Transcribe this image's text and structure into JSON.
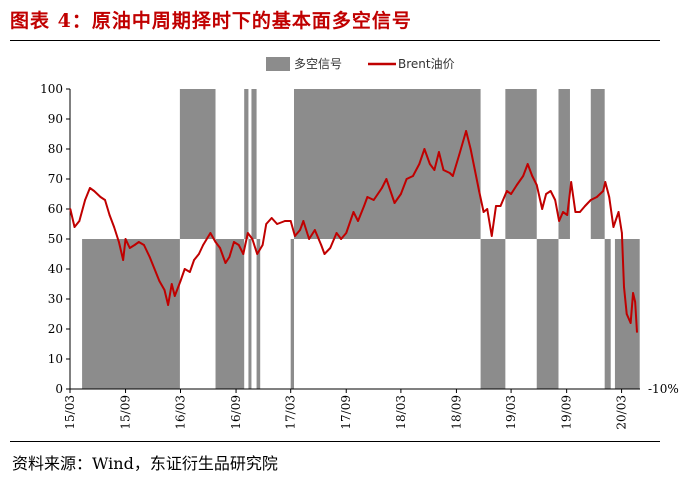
{
  "header": {
    "title": "图表 4：原油中周期择时下的基本面多空信号"
  },
  "footer": {
    "source": "资料来源：Wind，东证衍生品研究院"
  },
  "colors": {
    "signal": "#8c8c8c",
    "brent": "#c00000",
    "title": "#c00000",
    "axis": "#000000"
  },
  "chart_data": {
    "type": "area",
    "title": "",
    "xlabel": "",
    "ylabel": "",
    "ylim": [
      0,
      100
    ],
    "yticks": [
      "0",
      "10",
      "20",
      "30",
      "40",
      "50",
      "60",
      "70",
      "80",
      "90",
      "100"
    ],
    "xlim": [
      "2015-03-01",
      "2020-05-01"
    ],
    "xticks": [
      {
        "label": "15/03",
        "date": "2015-03-01"
      },
      {
        "label": "15/09",
        "date": "2015-09-01"
      },
      {
        "label": "16/03",
        "date": "2016-03-01"
      },
      {
        "label": "16/09",
        "date": "2016-09-01"
      },
      {
        "label": "17/03",
        "date": "2017-03-01"
      },
      {
        "label": "17/09",
        "date": "2017-09-01"
      },
      {
        "label": "18/03",
        "date": "2018-03-01"
      },
      {
        "label": "18/09",
        "date": "2018-09-01"
      },
      {
        "label": "19/03",
        "date": "2019-03-01"
      },
      {
        "label": "19/09",
        "date": "2019-09-01"
      },
      {
        "label": "20/03",
        "date": "2020-03-01"
      }
    ],
    "right_note": "-10%",
    "legend": {
      "position": "top",
      "items": [
        "多空信号",
        "Brent油价"
      ]
    },
    "signal": {
      "name": "多空信号",
      "baseline": 50,
      "periods": [
        {
          "start": "2015-03-01",
          "end": "2015-04-10",
          "value": 50
        },
        {
          "start": "2015-04-10",
          "end": "2016-02-28",
          "value": 0
        },
        {
          "start": "2016-02-28",
          "end": "2016-06-25",
          "value": 100
        },
        {
          "start": "2016-06-25",
          "end": "2016-09-28",
          "value": 0
        },
        {
          "start": "2016-09-28",
          "end": "2016-10-12",
          "value": 100
        },
        {
          "start": "2016-10-12",
          "end": "2016-10-22",
          "value": 0
        },
        {
          "start": "2016-10-22",
          "end": "2016-11-08",
          "value": 100
        },
        {
          "start": "2016-11-08",
          "end": "2016-11-20",
          "value": 0
        },
        {
          "start": "2016-11-20",
          "end": "2017-03-01",
          "value": 50
        },
        {
          "start": "2017-03-01",
          "end": "2017-03-12",
          "value": 0
        },
        {
          "start": "2017-03-12",
          "end": "2018-11-20",
          "value": 100
        },
        {
          "start": "2018-11-20",
          "end": "2019-02-10",
          "value": 0
        },
        {
          "start": "2019-02-10",
          "end": "2019-05-25",
          "value": 100
        },
        {
          "start": "2019-05-25",
          "end": "2019-08-05",
          "value": 0
        },
        {
          "start": "2019-08-05",
          "end": "2019-09-12",
          "value": 100
        },
        {
          "start": "2019-09-12",
          "end": "2019-11-20",
          "value": 50
        },
        {
          "start": "2019-11-20",
          "end": "2020-01-05",
          "value": 100
        },
        {
          "start": "2020-01-05",
          "end": "2020-01-25",
          "value": 0
        },
        {
          "start": "2020-01-25",
          "end": "2020-02-08",
          "value": 50
        },
        {
          "start": "2020-02-08",
          "end": "2020-04-30",
          "value": 0
        }
      ]
    },
    "series": [
      {
        "name": "Brent油价",
        "points": [
          [
            "2015-03-02",
            60
          ],
          [
            "2015-03-16",
            54
          ],
          [
            "2015-04-01",
            56
          ],
          [
            "2015-04-20",
            63
          ],
          [
            "2015-05-06",
            67
          ],
          [
            "2015-05-20",
            66
          ],
          [
            "2015-06-10",
            64
          ],
          [
            "2015-06-25",
            63
          ],
          [
            "2015-07-10",
            58
          ],
          [
            "2015-07-25",
            54
          ],
          [
            "2015-08-10",
            49
          ],
          [
            "2015-08-24",
            43
          ],
          [
            "2015-09-01",
            50
          ],
          [
            "2015-09-15",
            47
          ],
          [
            "2015-10-01",
            48
          ],
          [
            "2015-10-15",
            49
          ],
          [
            "2015-11-01",
            48
          ],
          [
            "2015-11-20",
            44
          ],
          [
            "2015-12-10",
            39
          ],
          [
            "2015-12-22",
            36
          ],
          [
            "2016-01-08",
            33
          ],
          [
            "2016-01-20",
            28
          ],
          [
            "2016-02-01",
            35
          ],
          [
            "2016-02-11",
            31
          ],
          [
            "2016-03-01",
            36
          ],
          [
            "2016-03-15",
            40
          ],
          [
            "2016-04-01",
            39
          ],
          [
            "2016-04-15",
            43
          ],
          [
            "2016-05-01",
            45
          ],
          [
            "2016-05-15",
            48
          ],
          [
            "2016-06-08",
            52
          ],
          [
            "2016-06-25",
            49
          ],
          [
            "2016-07-10",
            47
          ],
          [
            "2016-07-28",
            42
          ],
          [
            "2016-08-10",
            44
          ],
          [
            "2016-08-25",
            49
          ],
          [
            "2016-09-10",
            48
          ],
          [
            "2016-09-25",
            45
          ],
          [
            "2016-10-10",
            52
          ],
          [
            "2016-10-25",
            50
          ],
          [
            "2016-11-10",
            45
          ],
          [
            "2016-11-28",
            48
          ],
          [
            "2016-12-10",
            55
          ],
          [
            "2016-12-28",
            57
          ],
          [
            "2017-01-15",
            55
          ],
          [
            "2017-02-10",
            56
          ],
          [
            "2017-03-01",
            56
          ],
          [
            "2017-03-15",
            51
          ],
          [
            "2017-04-01",
            53
          ],
          [
            "2017-04-12",
            56
          ],
          [
            "2017-05-01",
            50
          ],
          [
            "2017-05-20",
            53
          ],
          [
            "2017-06-10",
            48
          ],
          [
            "2017-06-21",
            45
          ],
          [
            "2017-07-10",
            47
          ],
          [
            "2017-07-31",
            52
          ],
          [
            "2017-08-15",
            50
          ],
          [
            "2017-09-01",
            52
          ],
          [
            "2017-09-25",
            59
          ],
          [
            "2017-10-10",
            56
          ],
          [
            "2017-10-30",
            61
          ],
          [
            "2017-11-10",
            64
          ],
          [
            "2017-12-01",
            63
          ],
          [
            "2017-12-28",
            67
          ],
          [
            "2018-01-12",
            70
          ],
          [
            "2018-02-08",
            62
          ],
          [
            "2018-03-01",
            65
          ],
          [
            "2018-03-20",
            70
          ],
          [
            "2018-04-10",
            71
          ],
          [
            "2018-05-01",
            75
          ],
          [
            "2018-05-18",
            80
          ],
          [
            "2018-06-05",
            75
          ],
          [
            "2018-06-20",
            73
          ],
          [
            "2018-07-05",
            79
          ],
          [
            "2018-07-20",
            73
          ],
          [
            "2018-08-10",
            72
          ],
          [
            "2018-08-20",
            71
          ],
          [
            "2018-09-10",
            78
          ],
          [
            "2018-10-03",
            86
          ],
          [
            "2018-10-18",
            80
          ],
          [
            "2018-11-01",
            73
          ],
          [
            "2018-11-15",
            66
          ],
          [
            "2018-11-30",
            59
          ],
          [
            "2018-12-12",
            60
          ],
          [
            "2018-12-27",
            51
          ],
          [
            "2019-01-10",
            61
          ],
          [
            "2019-01-25",
            61
          ],
          [
            "2019-02-15",
            66
          ],
          [
            "2019-03-01",
            65
          ],
          [
            "2019-03-20",
            68
          ],
          [
            "2019-04-10",
            71
          ],
          [
            "2019-04-25",
            75
          ],
          [
            "2019-05-10",
            71
          ],
          [
            "2019-05-25",
            68
          ],
          [
            "2019-06-12",
            60
          ],
          [
            "2019-06-25",
            65
          ],
          [
            "2019-07-10",
            66
          ],
          [
            "2019-07-25",
            63
          ],
          [
            "2019-08-07",
            56
          ],
          [
            "2019-08-20",
            59
          ],
          [
            "2019-09-03",
            58
          ],
          [
            "2019-09-16",
            69
          ],
          [
            "2019-09-30",
            59
          ],
          [
            "2019-10-15",
            59
          ],
          [
            "2019-11-01",
            61
          ],
          [
            "2019-11-20",
            63
          ],
          [
            "2019-12-10",
            64
          ],
          [
            "2019-12-31",
            66
          ],
          [
            "2020-01-07",
            69
          ],
          [
            "2020-01-20",
            64
          ],
          [
            "2020-02-03",
            54
          ],
          [
            "2020-02-20",
            59
          ],
          [
            "2020-03-02",
            52
          ],
          [
            "2020-03-09",
            34
          ],
          [
            "2020-03-18",
            25
          ],
          [
            "2020-03-31",
            22
          ],
          [
            "2020-04-08",
            32
          ],
          [
            "2020-04-15",
            29
          ],
          [
            "2020-04-21",
            19
          ]
        ]
      }
    ]
  }
}
